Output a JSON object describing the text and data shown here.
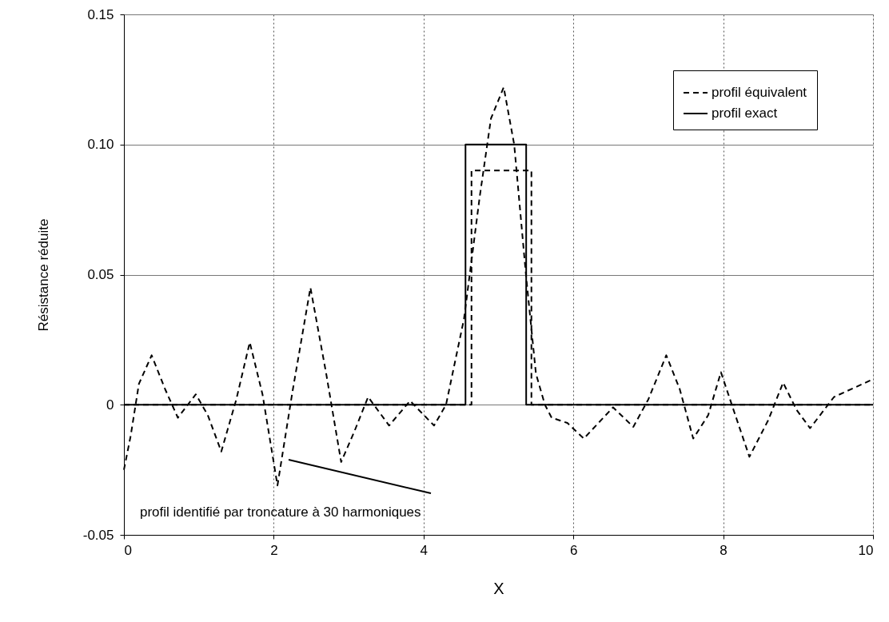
{
  "chart_data": {
    "type": "line",
    "xlabel": "X",
    "ylabel": "Résistance réduite",
    "xlim": [
      0,
      10
    ],
    "ylim": [
      -0.05,
      0.15
    ],
    "xticks": [
      0,
      2,
      4,
      6,
      8,
      10
    ],
    "yticks": [
      {
        "value": -0.05,
        "label": "-0.05"
      },
      0,
      {
        "value": 0.05,
        "label": "0.05"
      },
      {
        "value": 0.1,
        "label": "0.10"
      },
      {
        "value": 0.15,
        "label": "0.15"
      }
    ],
    "grid": true,
    "legend": "top right",
    "marker": "none",
    "series": [
      {
        "color": "#000000",
        "line_style": "dashed",
        "x": [
          0,
          0.09,
          0.2,
          0.37,
          0.55,
          0.72,
          0.96,
          1.12,
          1.3,
          1.5,
          1.68,
          1.85,
          2.05,
          2.25,
          2.49,
          2.7,
          2.9,
          3.08,
          3.26,
          3.54,
          3.82,
          4.14,
          4.3,
          4.54,
          4.75,
          4.9,
          5.07,
          5.21,
          5.37,
          5.5,
          5.62,
          5.71,
          5.92,
          6.14,
          6.53,
          6.8,
          7.0,
          7.24,
          7.42,
          7.6,
          7.8,
          7.97,
          8.15,
          8.35,
          8.6,
          8.8,
          8.98,
          9.16,
          9.48,
          10
        ],
        "values": [
          -0.025,
          -0.012,
          0.008,
          0.019,
          0.006,
          -0.005,
          0.004,
          -0.004,
          -0.018,
          0.002,
          0.024,
          0.004,
          -0.031,
          0.005,
          0.045,
          0.012,
          -0.022,
          -0.01,
          0.003,
          -0.008,
          0.0015,
          -0.008,
          0.0,
          0.033,
          0.08,
          0.11,
          0.122,
          0.1,
          0.049,
          0.012,
          0.0,
          -0.005,
          -0.007,
          -0.013,
          -0.001,
          -0.0085,
          0.002,
          0.019,
          0.006,
          -0.013,
          -0.004,
          0.0125,
          -0.003,
          -0.02,
          -0.006,
          0.0085,
          -0.002,
          -0.009,
          0.003,
          0.0098
        ]
      },
      {
        "name": "profil équivalent",
        "color": "#000000",
        "line_style": "dashed",
        "x": [
          0,
          4.64,
          4.64,
          5.44,
          5.44,
          10
        ],
        "values": [
          0,
          0,
          0.09,
          0.09,
          0,
          0
        ]
      },
      {
        "name": "profil exact",
        "color": "#000000",
        "line_style": "solid",
        "x": [
          0,
          4.56,
          4.56,
          5.37,
          5.37,
          10
        ],
        "values": [
          0,
          0,
          0.1,
          0.1,
          0,
          0
        ]
      }
    ],
    "annotations": [
      "profil identifié par troncature à 30 harmoniques"
    ]
  }
}
